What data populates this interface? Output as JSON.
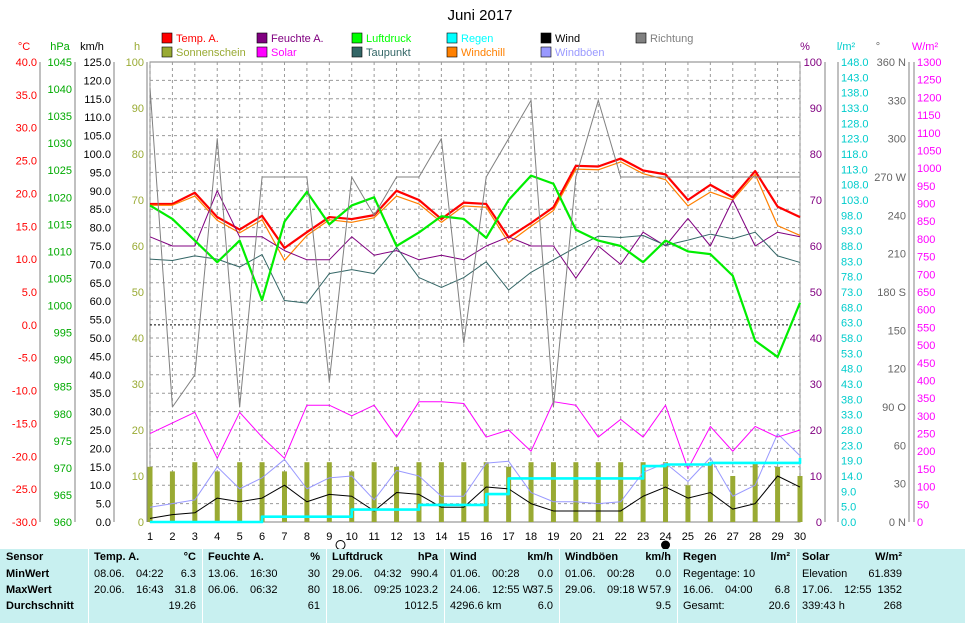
{
  "chart_data": {
    "type": "line",
    "title": "Juni 2017",
    "x_ticks": [
      "1",
      "2",
      "3",
      "4",
      "5",
      "6",
      "7",
      "8",
      "9",
      "10",
      "11",
      "12",
      "13",
      "14",
      "15",
      "16",
      "17",
      "18",
      "19",
      "20",
      "21",
      "22",
      "23",
      "24",
      "25",
      "26",
      "27",
      "28",
      "29",
      "30"
    ],
    "axes": {
      "temp": {
        "label": "°C",
        "min": -30,
        "max": 40,
        "color": "#ff0000",
        "ticks": [
          "-30.0",
          "-25.0",
          "-20.0",
          "-15.0",
          "-10.0",
          "-5.0",
          "0.0",
          "5.0",
          "10.0",
          "15.0",
          "20.0",
          "25.0",
          "30.0",
          "35.0",
          "40.0"
        ]
      },
      "pressure": {
        "label": "hPa",
        "min": 960,
        "max": 1045,
        "color": "#00aa00",
        "ticks": [
          "960",
          "965",
          "970",
          "975",
          "980",
          "985",
          "990",
          "995",
          "1000",
          "1005",
          "1010",
          "1015",
          "1020",
          "1025",
          "1030",
          "1035",
          "1040",
          "1045"
        ]
      },
      "wind": {
        "label": "km/h",
        "min": 0,
        "max": 125,
        "color": "#000000",
        "ticks": [
          "0.0",
          "5.0",
          "10.0",
          "15.0",
          "20.0",
          "25.0",
          "30.0",
          "35.0",
          "40.0",
          "45.0",
          "50.0",
          "55.0",
          "60.0",
          "65.0",
          "70.0",
          "75.0",
          "80.0",
          "85.0",
          "90.0",
          "95.0",
          "100.0",
          "105.0",
          "110.0",
          "115.0",
          "120.0",
          "125.0"
        ]
      },
      "sunshine": {
        "label": "h",
        "min": 0,
        "max": 100,
        "color": "#99aa33",
        "ticks": [
          "0",
          "10",
          "20",
          "30",
          "40",
          "50",
          "60",
          "70",
          "80",
          "90",
          "100"
        ]
      },
      "humidity": {
        "label": "%",
        "min": 0,
        "max": 100,
        "color": "#800080",
        "ticks": [
          "0",
          "10",
          "20",
          "30",
          "40",
          "50",
          "60",
          "70",
          "80",
          "90",
          "100"
        ]
      },
      "rain": {
        "label": "l/m²",
        "min": 0,
        "max": 148,
        "color": "#00cccc",
        "ticks": [
          "0.0",
          "5.0",
          "9.0",
          "14.0",
          "19.0",
          "23.0",
          "28.0",
          "33.0",
          "38.0",
          "43.0",
          "48.0",
          "53.0",
          "58.0",
          "63.0",
          "68.0",
          "73.0",
          "78.0",
          "83.0",
          "88.0",
          "93.0",
          "98.0",
          "103.0",
          "108.0",
          "113.0",
          "118.0",
          "123.0",
          "128.0",
          "133.0",
          "138.0",
          "143.0",
          "148.0"
        ]
      },
      "direction": {
        "label": "°",
        "min": 0,
        "max": 360,
        "color": "#666666",
        "ticks": [
          "0 N",
          "30",
          "60",
          "90 O",
          "120",
          "150",
          "180 S",
          "210",
          "240",
          "270 W",
          "300",
          "330",
          "360 N"
        ]
      },
      "solar": {
        "label": "W/m²",
        "min": 0,
        "max": 1300,
        "color": "#ff00ff",
        "ticks": [
          "0",
          "50",
          "100",
          "150",
          "200",
          "250",
          "300",
          "350",
          "400",
          "450",
          "500",
          "550",
          "600",
          "650",
          "700",
          "750",
          "800",
          "850",
          "900",
          "950",
          "1000",
          "1050",
          "1100",
          "1150",
          "1200",
          "1250",
          "1300"
        ]
      }
    },
    "legend": [
      {
        "name": "Temp. A.",
        "color": "#ff0000"
      },
      {
        "name": "Sonnenschein",
        "color": "#99aa33"
      },
      {
        "name": "Feuchte A.",
        "color": "#800080"
      },
      {
        "name": "Solar",
        "color": "#ff00ff"
      },
      {
        "name": "Luftdruck",
        "color": "#00ff00"
      },
      {
        "name": "Taupunkt",
        "color": "#336666"
      },
      {
        "name": "Regen",
        "color": "#00ffff"
      },
      {
        "name": "Windchill",
        "color": "#ff8000"
      },
      {
        "name": "Wind",
        "color": "#000000"
      },
      {
        "name": "Windböen",
        "color": "#9999ff"
      },
      {
        "name": "Richtung",
        "color": "#808080"
      }
    ],
    "series": [
      {
        "name": "Temp. A.",
        "axis": "temp",
        "color": "#ff0000",
        "width": 2.2,
        "values": [
          18.4,
          18.4,
          20.1,
          16.4,
          14.5,
          16.6,
          11.7,
          14.1,
          16.4,
          16.1,
          16.7,
          20.4,
          19.0,
          16.1,
          18.6,
          18.4,
          13.3,
          15.5,
          17.9,
          24.2,
          24.1,
          25.3,
          23.5,
          22.9,
          19.0,
          21.3,
          19.4,
          23.4,
          18.0,
          16.4
        ]
      },
      {
        "name": "Windchill",
        "axis": "temp",
        "color": "#ff8000",
        "width": 1.2,
        "values": [
          18.2,
          18.2,
          19.6,
          15.9,
          14.0,
          16.0,
          9.8,
          13.6,
          16.0,
          15.6,
          16.3,
          19.6,
          18.4,
          15.6,
          18.1,
          17.9,
          12.5,
          15.0,
          17.4,
          23.7,
          23.6,
          24.8,
          23.0,
          22.1,
          18.1,
          20.2,
          19.0,
          22.9,
          15.1,
          13.6
        ]
      },
      {
        "name": "Feuchte A.",
        "axis": "humidity",
        "color": "#800080",
        "width": 1,
        "values": [
          62,
          60,
          60,
          72,
          62,
          62,
          59,
          57,
          57,
          62,
          58,
          59,
          57,
          58,
          57,
          60,
          62,
          60,
          60,
          53,
          60,
          56,
          63,
          60,
          66,
          60,
          70,
          60,
          63,
          62
        ]
      },
      {
        "name": "Taupunkt",
        "axis": "temp",
        "color": "#336666",
        "width": 1,
        "values": [
          10.0,
          9.8,
          10.5,
          10.0,
          8.8,
          10.7,
          3.7,
          3.3,
          7.8,
          8.4,
          7.8,
          11.8,
          7.2,
          5.7,
          7.2,
          9.6,
          5.3,
          8.0,
          9.9,
          11.8,
          13.5,
          13.3,
          13.6,
          12.1,
          12.9,
          13.8,
          13.1,
          14.1,
          10.5,
          9.5
        ]
      },
      {
        "name": "Luftdruck",
        "axis": "pressure",
        "color": "#00ee00",
        "width": 2.2,
        "values": [
          1018.5,
          1016.0,
          1012.0,
          1008.0,
          1012.0,
          1001.0,
          1015.5,
          1021.0,
          1015.0,
          1018.5,
          1020.0,
          1011.0,
          1013.5,
          1016.5,
          1016.0,
          1012.5,
          1019.5,
          1024.0,
          1022.5,
          1014.0,
          1012.0,
          1011.0,
          1008.0,
          1012.0,
          1010.0,
          1009.5,
          1005.5,
          993.5,
          990.5,
          1000.5
        ]
      },
      {
        "name": "Wind",
        "axis": "wind",
        "color": "#000000",
        "width": 1,
        "values": [
          1.0,
          2.0,
          2.5,
          6.5,
          5.5,
          6.5,
          10.0,
          5.5,
          7.5,
          7.0,
          3.0,
          8.0,
          7.5,
          4.0,
          4.0,
          9.5,
          9.0,
          5.0,
          3.0,
          3.0,
          3.0,
          3.0,
          7.0,
          9.5,
          6.5,
          8.0,
          3.5,
          5.0,
          12.5,
          9.5
        ]
      },
      {
        "name": "Windböen",
        "axis": "wind",
        "color": "#9999ff",
        "width": 1,
        "values": [
          4.0,
          5.0,
          6.0,
          15.0,
          9.0,
          12.0,
          17.0,
          9.0,
          12.0,
          12.5,
          6.0,
          14.0,
          12.5,
          7.0,
          7.0,
          16.0,
          16.5,
          8.0,
          5.5,
          5.5,
          5.0,
          5.5,
          13.5,
          16.0,
          11.0,
          17.5,
          7.0,
          10.0,
          24.0,
          18.0
        ]
      },
      {
        "name": "Solar",
        "axis": "solar",
        "color": "#ff00ff",
        "width": 1,
        "values": [
          250,
          280,
          310,
          180,
          310,
          240,
          180,
          330,
          330,
          300,
          330,
          240,
          340,
          340,
          335,
          240,
          260,
          200,
          340,
          330,
          240,
          290,
          240,
          330,
          150,
          270,
          200,
          270,
          240,
          260
        ]
      },
      {
        "name": "Richtung",
        "axis": "direction",
        "color": "#808080",
        "width": 1,
        "values": [
          340,
          90,
          115,
          300,
          90,
          270,
          270,
          270,
          110,
          270,
          240,
          270,
          270,
          300,
          140,
          270,
          300,
          330,
          90,
          270,
          330,
          270,
          270,
          270,
          270,
          270,
          270,
          270,
          270,
          270
        ]
      },
      {
        "name": "Regen",
        "axis": "rain",
        "color": "#00ffff",
        "width": 2.6,
        "step": true,
        "values": [
          0,
          0,
          0,
          0,
          0,
          1.7,
          1.7,
          1.7,
          1.7,
          4.0,
          4.0,
          4.0,
          5.5,
          5.5,
          5.5,
          9.0,
          14.0,
          14.0,
          14.0,
          14.0,
          14.0,
          14.0,
          18.0,
          18.5,
          18.5,
          19.0,
          19.0,
          19.0,
          19.0,
          20.6
        ]
      }
    ],
    "bars": {
      "name": "Sonnenschein",
      "axis": "sunshine",
      "color": "#99aa33",
      "values": [
        12,
        11,
        13,
        11,
        13,
        13,
        11,
        13,
        13,
        11,
        13,
        12,
        13,
        13,
        13,
        13,
        12,
        13,
        13,
        13,
        13,
        13,
        13,
        13,
        8,
        13,
        10,
        13,
        12,
        10
      ]
    },
    "moon_markers": [
      {
        "day": 9.5,
        "phase": "empty-circle"
      },
      {
        "day": 24,
        "phase": "filled-circle"
      }
    ]
  },
  "stats": {
    "columns": [
      {
        "header": "Sensor",
        "rows": [
          "MinWert",
          "MaxWert",
          "Durchschnitt"
        ]
      },
      {
        "header": "Temp. A.",
        "unit": "°C",
        "rows": [
          [
            "08.06.",
            "04:22",
            "6.3"
          ],
          [
            "20.06.",
            "16:43",
            "31.8"
          ],
          [
            "",
            "",
            "19.26"
          ]
        ]
      },
      {
        "header": "Feuchte A.",
        "unit": "%",
        "rows": [
          [
            "13.06.",
            "16:30",
            "30"
          ],
          [
            "06.06.",
            "06:32",
            "80"
          ],
          [
            "",
            "",
            "61"
          ]
        ]
      },
      {
        "header": "Luftdruck",
        "unit": "hPa",
        "rows": [
          [
            "29.06.",
            "04:32",
            "990.4"
          ],
          [
            "18.06.",
            "09:25",
            "1023.2"
          ],
          [
            "",
            "",
            "1012.5"
          ]
        ]
      },
      {
        "header": "Wind",
        "unit": "km/h",
        "rows": [
          [
            "01.06.",
            "00:28",
            "0.0"
          ],
          [
            "24.06.",
            "12:55  W",
            "37.5"
          ],
          [
            "4296.6 km",
            "",
            "6.0"
          ]
        ]
      },
      {
        "header": "Windböen",
        "unit": "km/h",
        "rows": [
          [
            "01.06.",
            "00:28",
            "0.0"
          ],
          [
            "29.06.",
            "09:18  W",
            "57.9"
          ],
          [
            "",
            "",
            "9.5"
          ]
        ]
      },
      {
        "header": "Regen",
        "unit": "l/m²",
        "rows": [
          [
            "Regentage: 10",
            "",
            ""
          ],
          [
            "16.06.",
            "04:00",
            "6.8"
          ],
          [
            "Gesamt:",
            "",
            "20.6"
          ]
        ]
      },
      {
        "header": "Solar",
        "unit": "W/m²",
        "rows": [
          [
            "Elevation",
            "",
            "61.839"
          ],
          [
            "17.06.",
            "12:55",
            "1352"
          ],
          [
            "339:43 h",
            "",
            "268"
          ]
        ]
      }
    ]
  }
}
